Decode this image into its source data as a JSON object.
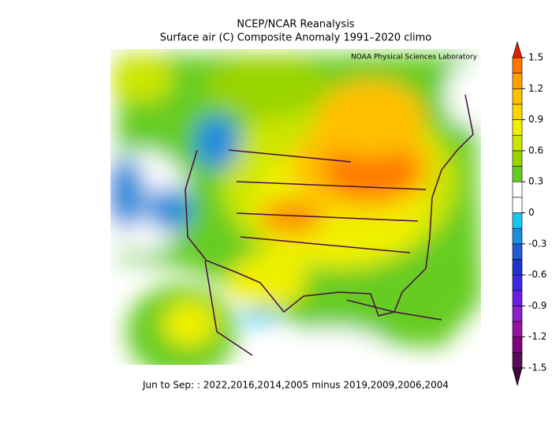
{
  "header": {
    "title": "NCEP/NCAR Reanalysis",
    "subtitle": "Surface air (C) Composite Anomaly 1991–2020 climo",
    "credit": "NOAA Physical Sciences Laboratory"
  },
  "footer": "Jun to Sep: : 2022,2016,2014,2005 minus 2019,2009,2006,2004",
  "colorbar": {
    "range": [
      -1.5,
      1.5
    ],
    "ticks": [
      1.5,
      1.2,
      0.9,
      0.6,
      0.3,
      0,
      -0.3,
      -0.6,
      -0.9,
      -1.2,
      -1.5
    ],
    "colors": [
      "#5a0a5a",
      "#800080",
      "#96149b",
      "#8c20c8",
      "#6a1ee0",
      "#3c28e6",
      "#1e32d2",
      "#1e5ad2",
      "#1e8cdc",
      "#14c8f0",
      "#ffffff",
      "#ffffff",
      "#66cc22",
      "#99d400",
      "#cce600",
      "#f0f000",
      "#ffd700",
      "#ffc000",
      "#ffa000",
      "#ff7800"
    ],
    "over_color": "#e02000",
    "under_color": "#3c0a3c"
  }
}
